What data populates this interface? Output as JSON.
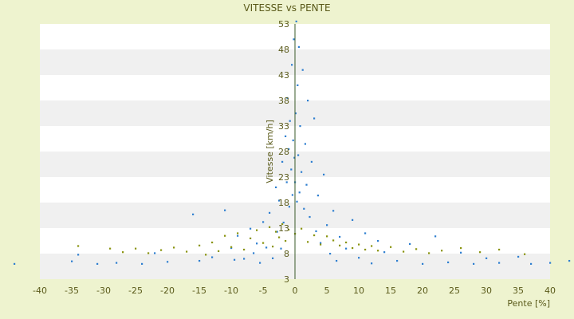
{
  "chart_data": {
    "type": "scatter",
    "title": "VITESSE vs PENTE",
    "xlabel": "Pente [%]",
    "ylabel": "Vitesse [km/h]",
    "xlim": [
      -40,
      40
    ],
    "ylim": [
      3,
      53
    ],
    "x_ticks": [
      -40,
      -35,
      -30,
      -25,
      -20,
      -15,
      -10,
      -5,
      0,
      5,
      10,
      15,
      20,
      25,
      30,
      35,
      40
    ],
    "y_ticks": [
      3,
      8,
      13,
      18,
      23,
      28,
      33,
      38,
      43,
      48,
      53
    ],
    "y_tick_labels": [
      "3",
      "8",
      "13",
      "18",
      "23",
      "28",
      "33",
      "38",
      "43",
      "48",
      "53"
    ],
    "grid": "horizontal alternating bands",
    "legend": "none",
    "series": [
      {
        "color": "#2f7fd0",
        "marker": "dot",
        "points": [
          [
            -44,
            6.0
          ],
          [
            -35,
            6.5
          ],
          [
            -34,
            7.8
          ],
          [
            -31,
            6.0
          ],
          [
            -28,
            6.2
          ],
          [
            -24,
            6.0
          ],
          [
            -22,
            8.1
          ],
          [
            -20,
            6.4
          ],
          [
            -16,
            15.7
          ],
          [
            -15,
            6.6
          ],
          [
            -13,
            7.3
          ],
          [
            -11,
            16.5
          ],
          [
            -10,
            9.1
          ],
          [
            -9.5,
            6.8
          ],
          [
            -9,
            11.5
          ],
          [
            -8,
            7.0
          ],
          [
            -7,
            12.9
          ],
          [
            -6.5,
            8.1
          ],
          [
            -6,
            10.0
          ],
          [
            -5.5,
            6.2
          ],
          [
            -5,
            14.2
          ],
          [
            -4.5,
            9.2
          ],
          [
            -4,
            16.0
          ],
          [
            -3.5,
            7.1
          ],
          [
            -3,
            21.0
          ],
          [
            -2.8,
            12.3
          ],
          [
            -2.5,
            18.4
          ],
          [
            -2.2,
            9.0
          ],
          [
            -2,
            26.0
          ],
          [
            -1.8,
            14.1
          ],
          [
            -1.5,
            31.0
          ],
          [
            -1.3,
            22.0
          ],
          [
            -1.2,
            38.5
          ],
          [
            -1,
            28.5
          ],
          [
            -0.9,
            17.2
          ],
          [
            -0.8,
            34.0
          ],
          [
            -0.6,
            24.5
          ],
          [
            -0.5,
            45.0
          ],
          [
            -0.4,
            19.5
          ],
          [
            -0.3,
            30.2
          ],
          [
            -0.2,
            50.0
          ],
          [
            -0.1,
            26.8
          ],
          [
            0,
            22.0
          ],
          [
            0.1,
            35.5
          ],
          [
            0.2,
            53.5
          ],
          [
            0.3,
            18.2
          ],
          [
            0.4,
            41.0
          ],
          [
            0.5,
            27.3
          ],
          [
            0.6,
            48.5
          ],
          [
            0.7,
            20.0
          ],
          [
            0.8,
            33.0
          ],
          [
            1.0,
            24.0
          ],
          [
            1.2,
            44.0
          ],
          [
            1.4,
            16.8
          ],
          [
            1.6,
            29.5
          ],
          [
            1.8,
            21.5
          ],
          [
            2.0,
            38.0
          ],
          [
            2.3,
            15.2
          ],
          [
            2.6,
            26.0
          ],
          [
            3.0,
            34.5
          ],
          [
            3.3,
            12.4
          ],
          [
            3.6,
            19.4
          ],
          [
            4.0,
            10.1
          ],
          [
            4.5,
            23.5
          ],
          [
            5.0,
            13.6
          ],
          [
            5.5,
            8.0
          ],
          [
            6.0,
            16.4
          ],
          [
            6.5,
            6.6
          ],
          [
            7.0,
            11.3
          ],
          [
            8.0,
            9.0
          ],
          [
            9.0,
            14.6
          ],
          [
            10.0,
            7.2
          ],
          [
            11.0,
            12.0
          ],
          [
            12.0,
            6.1
          ],
          [
            13.0,
            10.5
          ],
          [
            14.0,
            8.3
          ],
          [
            16.0,
            6.6
          ],
          [
            18.0,
            9.9
          ],
          [
            20.0,
            6.0
          ],
          [
            22.0,
            11.4
          ],
          [
            24.0,
            6.3
          ],
          [
            26.0,
            8.2
          ],
          [
            28.0,
            6.0
          ],
          [
            30.0,
            7.1
          ],
          [
            32.0,
            6.2
          ],
          [
            35.0,
            7.4
          ],
          [
            37.0,
            6.0
          ],
          [
            40.0,
            6.2
          ],
          [
            43.0,
            6.6
          ]
        ]
      },
      {
        "color": "#8a9410",
        "marker": "dot",
        "points": [
          [
            -34,
            9.5
          ],
          [
            -29,
            9.0
          ],
          [
            -27,
            8.3
          ],
          [
            -25,
            9.0
          ],
          [
            -23,
            8.1
          ],
          [
            -21,
            8.7
          ],
          [
            -19,
            9.2
          ],
          [
            -17,
            8.4
          ],
          [
            -15,
            9.6
          ],
          [
            -14,
            7.8
          ],
          [
            -13,
            10.2
          ],
          [
            -12,
            8.5
          ],
          [
            -11,
            11.5
          ],
          [
            -10,
            9.3
          ],
          [
            -9,
            12.0
          ],
          [
            -8,
            8.8
          ],
          [
            -7,
            11.0
          ],
          [
            -6,
            12.6
          ],
          [
            -5,
            10.1
          ],
          [
            -4,
            13.2
          ],
          [
            -3.5,
            9.4
          ],
          [
            -3,
            12.3
          ],
          [
            -2.5,
            11.2
          ],
          [
            -2,
            13.8
          ],
          [
            -1.5,
            10.5
          ],
          [
            -1,
            12.7
          ],
          [
            0,
            11.9
          ],
          [
            1,
            12.9
          ],
          [
            2,
            10.3
          ],
          [
            3,
            11.6
          ],
          [
            4,
            9.8
          ],
          [
            5,
            11.4
          ],
          [
            6,
            10.6
          ],
          [
            7,
            9.6
          ],
          [
            8,
            10.2
          ],
          [
            9,
            9.1
          ],
          [
            10,
            9.8
          ],
          [
            11,
            8.8
          ],
          [
            12,
            9.5
          ],
          [
            13,
            8.6
          ],
          [
            15,
            9.3
          ],
          [
            17,
            8.4
          ],
          [
            19,
            8.9
          ],
          [
            21,
            8.1
          ],
          [
            23,
            8.6
          ],
          [
            26,
            9.1
          ],
          [
            29,
            8.3
          ],
          [
            32,
            8.8
          ],
          [
            36,
            7.9
          ]
        ]
      }
    ]
  }
}
